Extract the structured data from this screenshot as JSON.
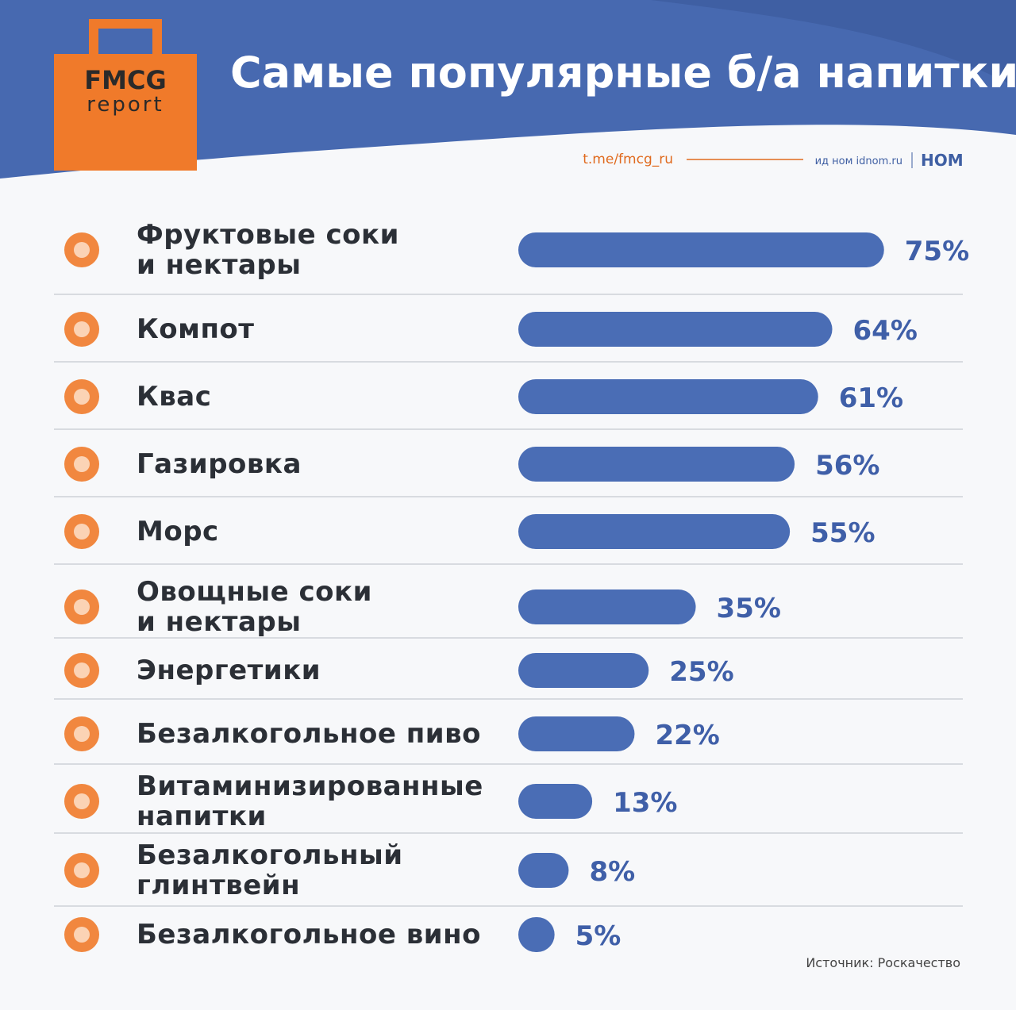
{
  "header": {
    "logo_top": "FMCG",
    "logo_bottom": "report",
    "link": "t.me/fmcg_ru",
    "partner": "ид ном idnom.ru",
    "partner_logo": "НОМ"
  },
  "chart_data": {
    "type": "bar",
    "orientation": "horizontal",
    "title": "Самые популярные б/а напитки",
    "categories": [
      "Фруктовые соки\nи нектары",
      "Компот",
      "Квас",
      "Газировка",
      "Морс",
      "Овощные соки\nи нектары",
      "Энергетики",
      "Безалкогольное пиво",
      "Витаминизированные\nнапитки",
      "Безалкогольный\nглинтвейн",
      "Безалкогольное вино"
    ],
    "values": [
      75,
      64,
      61,
      56,
      55,
      35,
      25,
      22,
      13,
      8,
      5
    ],
    "value_labels": [
      "75%",
      "64%",
      "61%",
      "56%",
      "55%",
      "35%",
      "25%",
      "22%",
      "13%",
      "8%",
      "5%"
    ],
    "color": "#4a6db5",
    "source": "Источник: Роскачество"
  }
}
